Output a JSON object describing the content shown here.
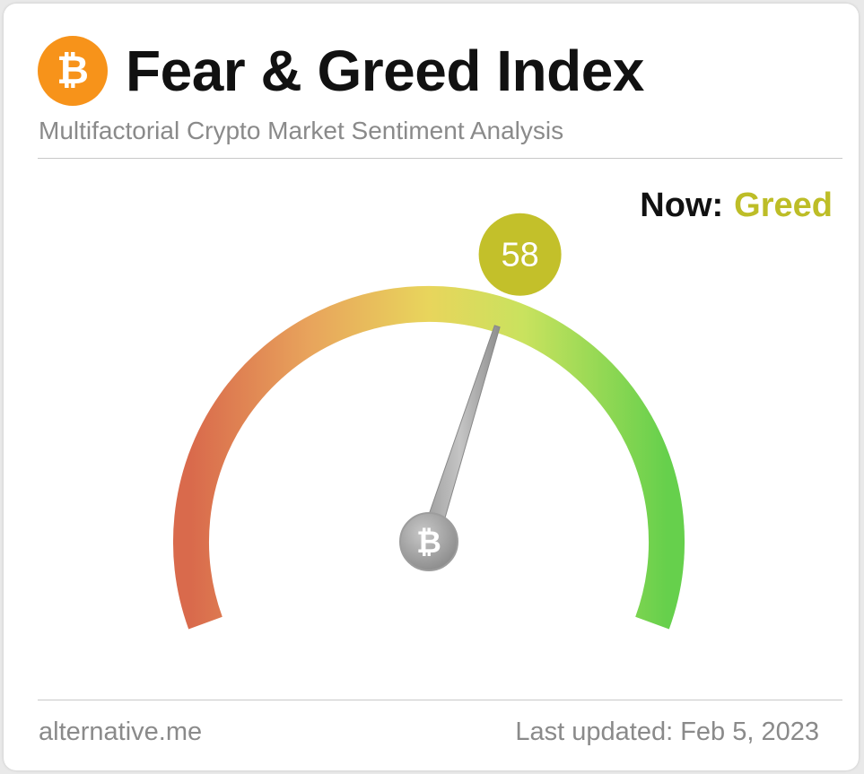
{
  "header": {
    "logo_symbol": "₿",
    "title": "Fear & Greed Index",
    "subtitle": "Multifactorial Crypto Market Sentiment Analysis"
  },
  "status": {
    "now_label": "Now:",
    "classification": "Greed",
    "classification_color": "#bdbd27"
  },
  "gauge": {
    "value": 58,
    "value_text": "58",
    "min": 0,
    "max": 100,
    "badge_color": "#c3c02a",
    "hub_symbol": "₿"
  },
  "footer": {
    "source": "alternative.me",
    "updated": "Last updated: Feb 5, 2023"
  }
}
